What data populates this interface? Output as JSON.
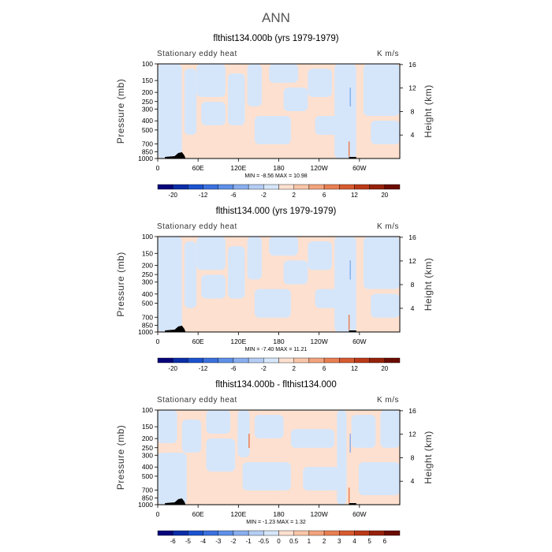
{
  "figure_title": "ANN",
  "chart_data": [
    {
      "type": "heatmap",
      "title": "flthist134.000b (yrs 1979-1979)",
      "corner_left": "Stationary eddy heat",
      "corner_right": "K m/s",
      "ylabel": "Pressure (mb)",
      "ylabel_right": "Height (km)",
      "pressure_ticks": [
        100,
        150,
        200,
        250,
        300,
        400,
        500,
        700,
        850,
        1000
      ],
      "height_ticks": [
        4,
        8,
        12,
        16
      ],
      "x_ticks": [
        "0",
        "60E",
        "120E",
        "180",
        "120W",
        "60W"
      ],
      "x_tick_values": [
        0,
        60,
        120,
        180,
        240,
        300
      ],
      "xlim": [
        0,
        360
      ],
      "ylim": [
        1000,
        100
      ],
      "min": -8.56,
      "max": 10.98,
      "minmax_text": "MIN =   -8.56   MAX =   10.98",
      "colorbar_labels": [
        "-20",
        "-12",
        "-6",
        "-2",
        "2",
        "6",
        "12",
        "20"
      ]
    },
    {
      "type": "heatmap",
      "title": "flthist134.000 (yrs 1979-1979)",
      "corner_left": "Stationary eddy heat",
      "corner_right": "K m/s",
      "ylabel": "Pressure (mb)",
      "ylabel_right": "Height (km)",
      "pressure_ticks": [
        100,
        150,
        200,
        250,
        300,
        400,
        500,
        700,
        850,
        1000
      ],
      "height_ticks": [
        4,
        8,
        12,
        16
      ],
      "x_ticks": [
        "0",
        "60E",
        "120E",
        "180",
        "120W",
        "60W"
      ],
      "x_tick_values": [
        0,
        60,
        120,
        180,
        240,
        300
      ],
      "xlim": [
        0,
        360
      ],
      "ylim": [
        1000,
        100
      ],
      "min": -7.4,
      "max": 11.21,
      "minmax_text": "MIN =   -7.40   MAX =   11.21",
      "colorbar_labels": [
        "-20",
        "-12",
        "-6",
        "-2",
        "2",
        "6",
        "12",
        "20"
      ]
    },
    {
      "type": "heatmap",
      "title": "flthist134.000b - flthist134.000",
      "corner_left": "Stationary eddy heat",
      "corner_right": "K m/s",
      "ylabel": "Pressure (mb)",
      "ylabel_right": "Height (km)",
      "pressure_ticks": [
        100,
        150,
        200,
        250,
        300,
        400,
        500,
        700,
        850,
        1000
      ],
      "height_ticks": [
        4,
        8,
        12,
        16
      ],
      "x_ticks": [
        "0",
        "60E",
        "120E",
        "180",
        "120W",
        "60W"
      ],
      "x_tick_values": [
        0,
        60,
        120,
        180,
        240,
        300
      ],
      "xlim": [
        0,
        360
      ],
      "ylim": [
        1000,
        100
      ],
      "min": -1.23,
      "max": 1.32,
      "minmax_text": "MIN =   -1.23   MAX =    1.32",
      "colorbar_labels": [
        "-6",
        "-5",
        "-4",
        "-3",
        "-2",
        "-1",
        "-0.5",
        "0",
        "0.5",
        "1",
        "2",
        "3",
        "4",
        "5",
        "6"
      ]
    }
  ],
  "colorbar_colors": [
    "#08057a",
    "#0b2ea8",
    "#1c52cf",
    "#3b71de",
    "#5e90e8",
    "#8aafef",
    "#b4cdf4",
    "#d6e6fa",
    "#fde0cf",
    "#f9c5a8",
    "#f3a47d",
    "#e87f53",
    "#d75a30",
    "#bb3a18",
    "#952209",
    "#6b0b00"
  ],
  "field_colors": {
    "light_blue": "#d6e6fa",
    "light_orange": "#fde0cf",
    "blue": "#8aafef",
    "orange": "#e87f53",
    "topography": "#000000"
  }
}
